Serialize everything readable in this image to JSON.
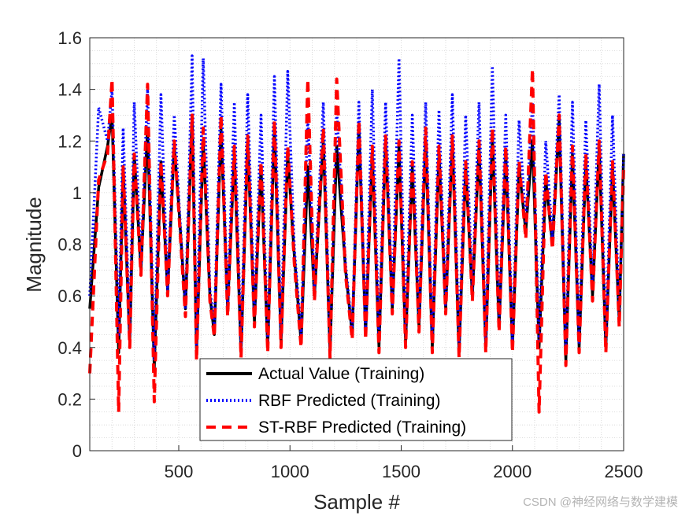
{
  "chart_data": {
    "type": "line",
    "title": "",
    "xlabel": "Sample #",
    "ylabel": "Magnitude",
    "xlim": [
      100,
      2500
    ],
    "ylim": [
      0,
      1.6
    ],
    "xticks": [
      500,
      1000,
      1500,
      2000,
      2500
    ],
    "xtick_labels": [
      "500",
      "1000",
      "1500",
      "2000",
      "2500"
    ],
    "yticks": [
      0,
      0.2,
      0.4,
      0.6,
      0.8,
      1.0,
      1.2,
      1.4,
      1.6
    ],
    "ytick_labels": [
      "0",
      "0.2",
      "0.4",
      "0.6",
      "0.8",
      "1",
      "1.2",
      "1.4",
      "1.6"
    ],
    "grid": "minor dotted",
    "legend_position": "bottom-center",
    "series": [
      {
        "name": "Actual Value (Training)",
        "color": "#000000",
        "style": "solid",
        "x": [
          100,
          140,
          180,
          200,
          230,
          250,
          280,
          300,
          330,
          360,
          390,
          420,
          450,
          480,
          500,
          530,
          560,
          580,
          610,
          640,
          660,
          690,
          720,
          750,
          780,
          810,
          840,
          870,
          900,
          930,
          960,
          990,
          1020,
          1050,
          1080,
          1110,
          1150,
          1180,
          1210,
          1250,
          1280,
          1310,
          1340,
          1370,
          1400,
          1430,
          1460,
          1490,
          1520,
          1550,
          1580,
          1610,
          1640,
          1670,
          1700,
          1730,
          1760,
          1790,
          1820,
          1850,
          1880,
          1910,
          1940,
          1970,
          2000,
          2030,
          2060,
          2090,
          2120,
          2150,
          2180,
          2210,
          2240,
          2270,
          2300,
          2330,
          2360,
          2390,
          2420,
          2450,
          2480,
          2500
        ],
        "y": [
          0.55,
          1.02,
          1.18,
          1.3,
          0.38,
          1.1,
          0.42,
          1.15,
          0.7,
          1.25,
          0.32,
          1.12,
          0.62,
          1.18,
          0.95,
          0.55,
          1.3,
          0.38,
          1.2,
          0.6,
          0.45,
          1.25,
          0.55,
          1.15,
          0.38,
          1.2,
          0.5,
          1.1,
          0.4,
          1.25,
          0.42,
          1.15,
          0.75,
          0.42,
          1.1,
          0.6,
          1.2,
          0.38,
          1.18,
          0.7,
          0.45,
          1.25,
          0.45,
          1.15,
          0.4,
          1.2,
          0.55,
          1.18,
          0.42,
          1.1,
          0.48,
          1.2,
          0.4,
          1.15,
          0.55,
          1.2,
          0.38,
          1.1,
          0.6,
          1.18,
          0.4,
          1.22,
          0.48,
          1.15,
          0.4,
          1.1,
          0.85,
          1.2,
          0.4,
          1.05,
          0.8,
          1.28,
          0.35,
          1.15,
          0.4,
          1.12,
          0.6,
          1.18,
          0.4,
          1.1,
          0.5,
          1.15
        ]
      },
      {
        "name": "RBF Predicted (Training)",
        "color": "#0000ff",
        "style": "dotted",
        "x": [
          100,
          140,
          180,
          200,
          230,
          250,
          280,
          300,
          330,
          360,
          390,
          420,
          450,
          480,
          500,
          530,
          560,
          580,
          610,
          640,
          660,
          690,
          720,
          750,
          780,
          810,
          840,
          870,
          900,
          930,
          960,
          990,
          1020,
          1050,
          1080,
          1110,
          1150,
          1180,
          1210,
          1250,
          1280,
          1310,
          1340,
          1370,
          1400,
          1430,
          1460,
          1490,
          1520,
          1550,
          1580,
          1610,
          1640,
          1670,
          1700,
          1730,
          1760,
          1790,
          1820,
          1850,
          1880,
          1910,
          1940,
          1970,
          2000,
          2030,
          2060,
          2090,
          2120,
          2150,
          2180,
          2210,
          2240,
          2270,
          2300,
          2330,
          2360,
          2390,
          2420,
          2450,
          2480,
          2500
        ],
        "y": [
          0.6,
          1.33,
          1.2,
          1.4,
          0.45,
          1.25,
          0.45,
          1.35,
          0.72,
          1.4,
          0.35,
          1.38,
          0.62,
          1.3,
          0.98,
          0.55,
          1.53,
          0.4,
          1.52,
          0.62,
          0.48,
          1.42,
          0.55,
          1.35,
          0.4,
          1.38,
          0.52,
          1.3,
          0.4,
          1.45,
          0.44,
          1.47,
          0.78,
          0.45,
          1.3,
          0.62,
          1.35,
          0.4,
          1.32,
          0.72,
          0.46,
          1.35,
          0.46,
          1.4,
          0.42,
          1.35,
          0.56,
          1.52,
          0.44,
          1.3,
          0.5,
          1.35,
          0.42,
          1.32,
          0.56,
          1.38,
          0.4,
          1.3,
          0.62,
          1.35,
          0.42,
          1.49,
          0.5,
          1.3,
          0.42,
          1.28,
          0.88,
          1.35,
          0.42,
          1.2,
          0.82,
          1.38,
          0.38,
          1.35,
          0.42,
          1.28,
          0.62,
          1.42,
          0.42,
          1.3,
          0.52,
          1.15
        ]
      },
      {
        "name": "ST-RBF Predicted (Training)",
        "color": "#ff0000",
        "style": "dashed",
        "x": [
          100,
          140,
          180,
          200,
          230,
          250,
          280,
          300,
          330,
          360,
          390,
          420,
          450,
          480,
          500,
          530,
          560,
          580,
          610,
          640,
          660,
          690,
          720,
          750,
          780,
          810,
          840,
          870,
          900,
          930,
          960,
          990,
          1020,
          1050,
          1080,
          1110,
          1150,
          1180,
          1210,
          1250,
          1280,
          1310,
          1340,
          1370,
          1400,
          1430,
          1460,
          1490,
          1520,
          1550,
          1580,
          1610,
          1640,
          1670,
          1700,
          1730,
          1760,
          1790,
          1820,
          1850,
          1880,
          1910,
          1940,
          1970,
          2000,
          2030,
          2060,
          2090,
          2120,
          2150,
          2180,
          2210,
          2240,
          2270,
          2300,
          2330,
          2360,
          2390,
          2420,
          2450,
          2480,
          2500
        ],
        "y": [
          0.3,
          1.05,
          1.15,
          1.44,
          0.15,
          1.1,
          0.4,
          1.15,
          0.68,
          1.42,
          0.19,
          1.12,
          0.6,
          1.2,
          0.93,
          0.52,
          1.3,
          0.35,
          1.25,
          0.58,
          0.44,
          1.3,
          0.52,
          1.18,
          0.36,
          1.22,
          0.48,
          1.12,
          0.38,
          1.28,
          0.4,
          1.18,
          0.72,
          0.4,
          1.44,
          0.58,
          1.25,
          0.36,
          1.44,
          0.68,
          0.43,
          1.28,
          0.43,
          1.18,
          0.38,
          1.22,
          0.53,
          1.2,
          0.4,
          1.12,
          0.46,
          1.25,
          0.38,
          1.18,
          0.53,
          1.22,
          0.36,
          1.12,
          0.58,
          1.2,
          0.38,
          1.25,
          0.46,
          1.18,
          0.38,
          1.12,
          0.82,
          1.48,
          0.15,
          1.08,
          0.78,
          1.3,
          0.33,
          1.18,
          0.38,
          1.15,
          0.58,
          1.2,
          0.38,
          1.12,
          0.48,
          1.1
        ]
      }
    ]
  },
  "watermark": "CSDN @神经网络与数学建模"
}
